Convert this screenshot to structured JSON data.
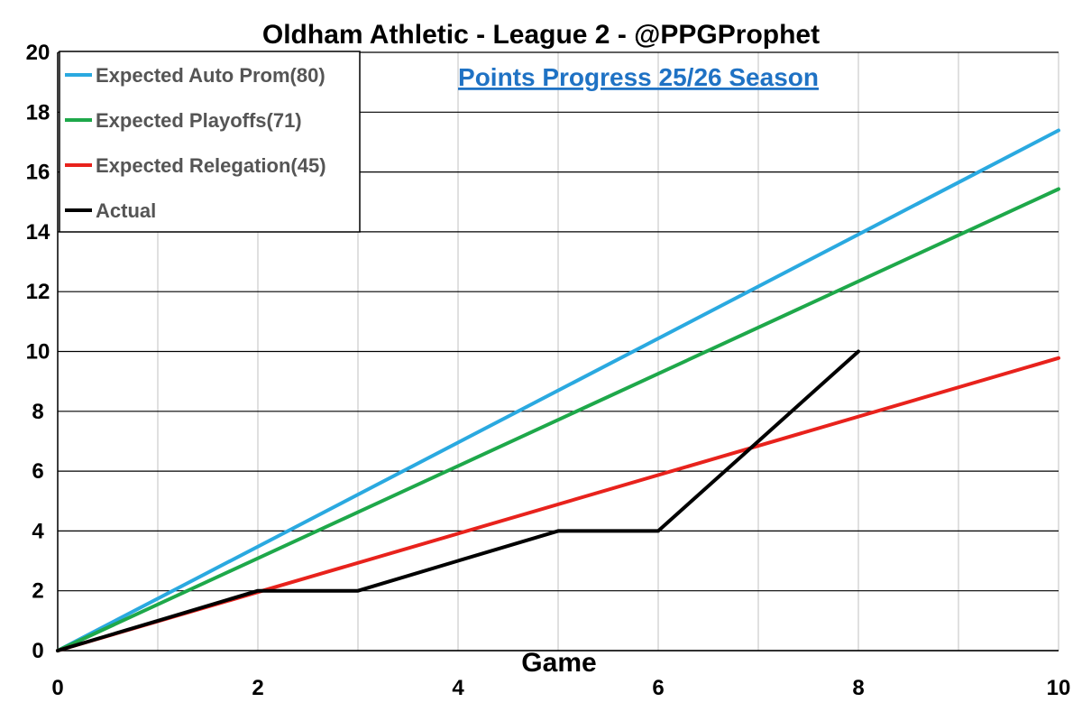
{
  "chart_data": {
    "type": "line",
    "title": "Oldham Athletic - League 2 - @PPGProphet",
    "subtitle": "Points Progress 25/26 Season",
    "xlabel": "Game",
    "ylabel": "",
    "xlim": [
      0,
      10
    ],
    "ylim": [
      0,
      20
    ],
    "x_ticks": [
      "0",
      "2",
      "4",
      "6",
      "8",
      "10"
    ],
    "y_ticks": [
      "0",
      "2",
      "4",
      "6",
      "8",
      "10",
      "12",
      "14",
      "16",
      "18",
      "20"
    ],
    "grid": true,
    "legend_position": "top-left",
    "series": [
      {
        "name": "Expected Auto Prom(80)",
        "color": "#2aa9e0",
        "x": [
          0,
          10
        ],
        "y": [
          0,
          17.39
        ]
      },
      {
        "name": "Expected Playoffs(71)",
        "color": "#1ea84a",
        "x": [
          0,
          10
        ],
        "y": [
          0,
          15.43
        ]
      },
      {
        "name": "Expected Relegation(45)",
        "color": "#e8221c",
        "x": [
          0,
          10
        ],
        "y": [
          0,
          9.78
        ]
      },
      {
        "name": "Actual",
        "color": "#000000",
        "x": [
          0,
          1,
          2,
          3,
          4,
          5,
          6,
          7,
          8
        ],
        "y": [
          0,
          1,
          2,
          2,
          3,
          4,
          4,
          7,
          10
        ]
      }
    ]
  }
}
